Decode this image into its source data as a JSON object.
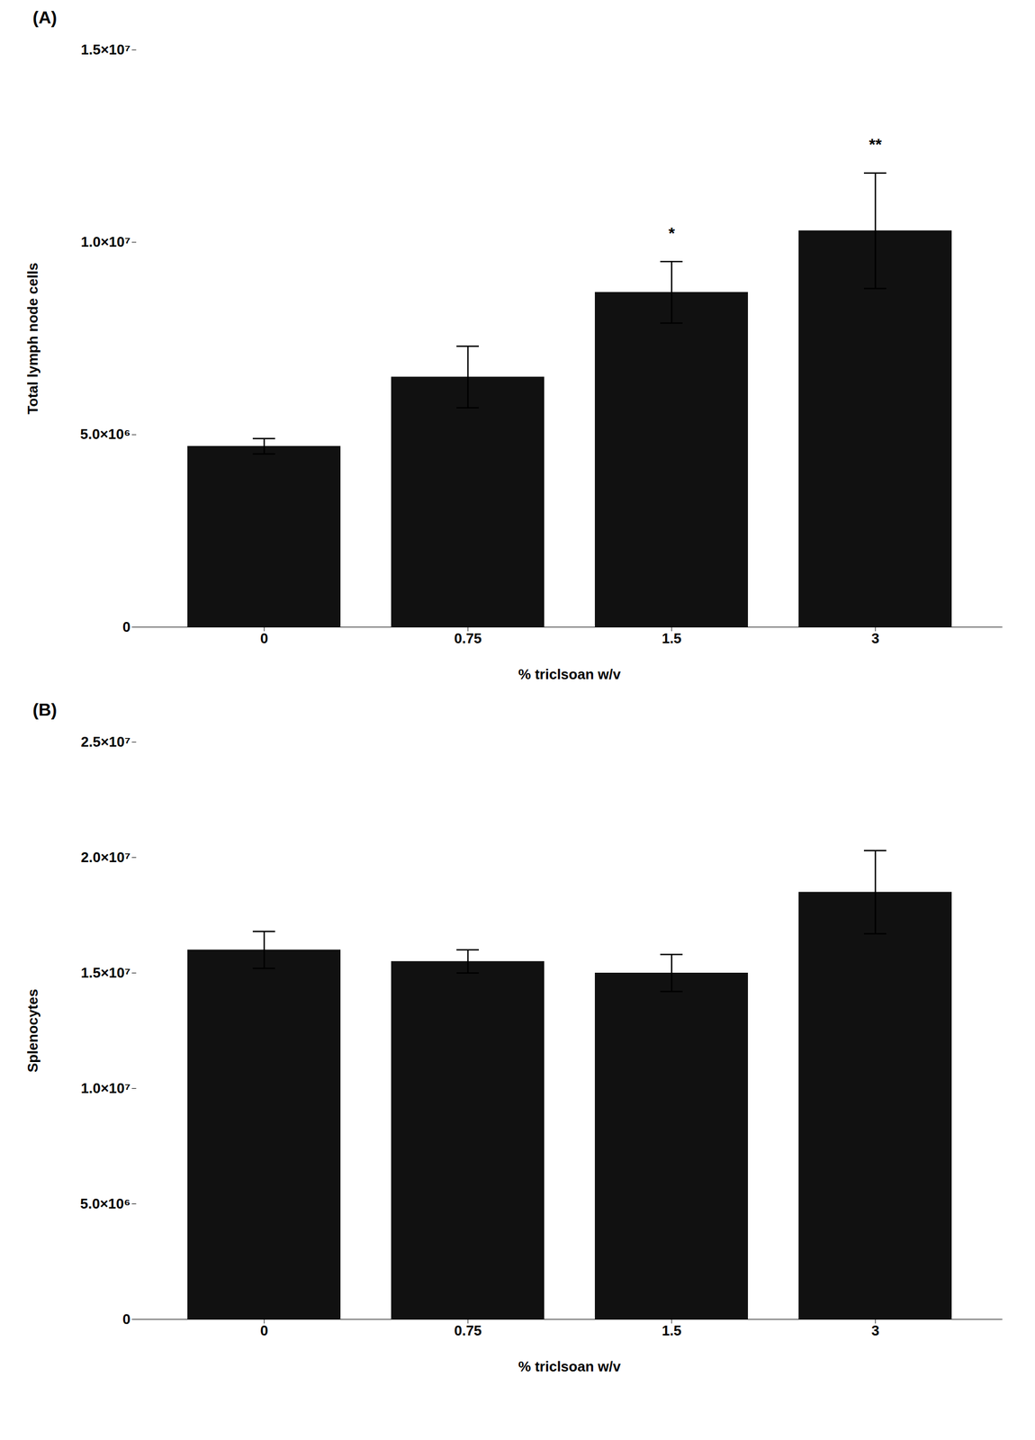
{
  "chart_data": [
    {
      "type": "bar",
      "title": "(A)",
      "categories": [
        "0",
        "0.75",
        "1.5",
        "3"
      ],
      "values": [
        4700000,
        6500000,
        8700000,
        10300000
      ],
      "errors": [
        200000,
        800000,
        800000,
        1500000
      ],
      "xlabel": "% triclsoan w/v",
      "ylabel": "Total lymph node cells",
      "ylim": [
        0,
        15000000
      ],
      "yticks": [
        0,
        {
          "value": 5000000,
          "label": "5.0×10⁶"
        },
        {
          "value": 10000000,
          "label": "1.0×10⁷"
        },
        {
          "value": 15000000,
          "label": "1.5×10⁷"
        }
      ],
      "color": "#111111",
      "grid": false,
      "annotations": [
        {
          "x": "1.5",
          "text": "*"
        },
        {
          "x": "3",
          "text": "**"
        }
      ]
    },
    {
      "type": "bar",
      "title": "(B)",
      "categories": [
        "0",
        "0.75",
        "1.5",
        "3"
      ],
      "values": [
        16000000,
        15500000,
        15000000,
        18500000
      ],
      "errors": [
        800000,
        500000,
        800000,
        1800000
      ],
      "xlabel": "% triclsoan w/v",
      "ylabel": "Splenocytes",
      "ylim": [
        0,
        25000000
      ],
      "yticks": [
        0,
        {
          "value": 5000000,
          "label": "5.0×10⁶"
        },
        {
          "value": 10000000,
          "label": "1.0×10⁷"
        },
        {
          "value": 15000000,
          "label": "1.5×10⁷"
        },
        {
          "value": 20000000,
          "label": "2.0×10⁷"
        },
        {
          "value": 25000000,
          "label": "2.5×10⁷"
        }
      ],
      "color": "#111111",
      "grid": false
    }
  ]
}
